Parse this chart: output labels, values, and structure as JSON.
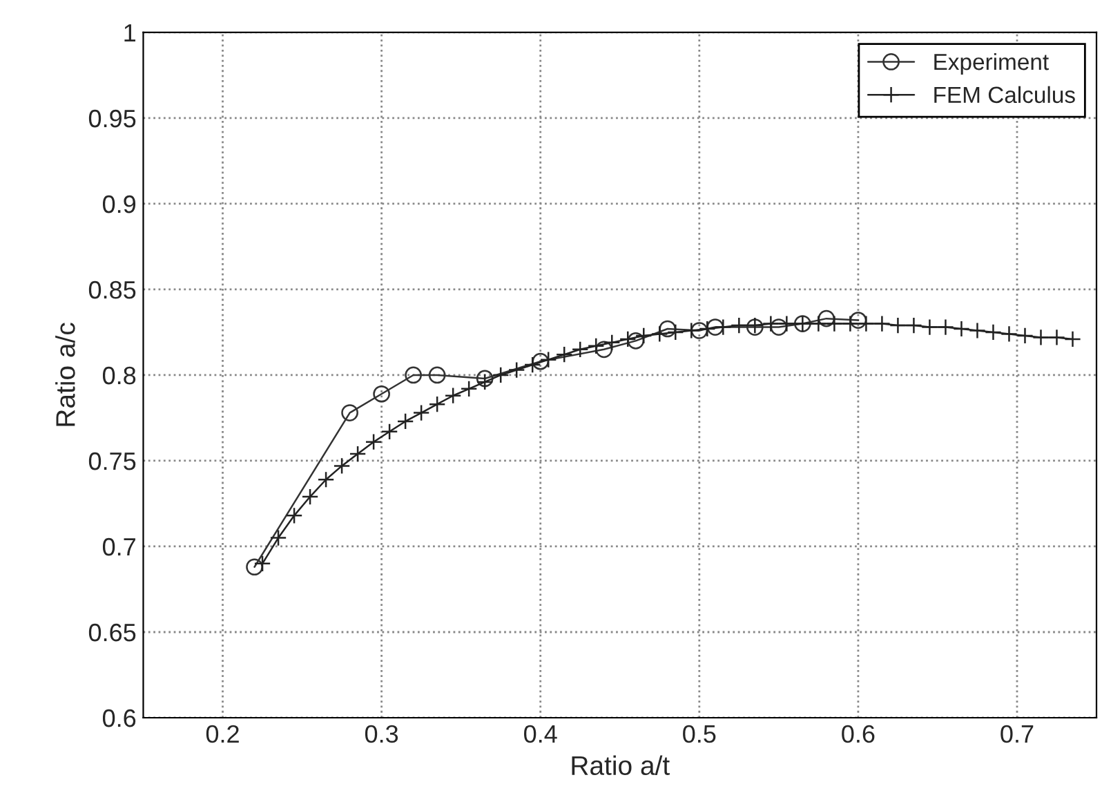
{
  "chart_data": {
    "type": "line",
    "xlabel": "Ratio a/t",
    "ylabel": "Ratio a/c",
    "xlim": [
      0.15,
      0.75
    ],
    "xticks": [
      0.2,
      0.3,
      0.4,
      0.5,
      0.6,
      0.7
    ],
    "ylim": [
      0.6,
      1
    ],
    "yticks": [
      0.6,
      0.65,
      0.7,
      0.75,
      0.8,
      0.85,
      0.9,
      0.95,
      1
    ],
    "grid": true,
    "legend": "top right",
    "line_style": "solid",
    "series": [
      {
        "name": "Experiment",
        "color": "#333333",
        "marker": "circle",
        "x": [
          0.22,
          0.28,
          0.3,
          0.32,
          0.335,
          0.365,
          0.4,
          0.44,
          0.46,
          0.48,
          0.5,
          0.51,
          0.535,
          0.55,
          0.565,
          0.58,
          0.6
        ],
        "values": [
          0.688,
          0.778,
          0.789,
          0.8,
          0.8,
          0.798,
          0.808,
          0.815,
          0.82,
          0.827,
          0.826,
          0.828,
          0.828,
          0.828,
          0.83,
          0.833,
          0.832
        ]
      },
      {
        "name": "FEM Calculus",
        "color": "#222222",
        "marker": "cross",
        "x": [
          0.225,
          0.235,
          0.245,
          0.255,
          0.265,
          0.275,
          0.285,
          0.295,
          0.305,
          0.315,
          0.325,
          0.335,
          0.345,
          0.355,
          0.365,
          0.375,
          0.385,
          0.395,
          0.405,
          0.415,
          0.425,
          0.435,
          0.445,
          0.455,
          0.465,
          0.475,
          0.485,
          0.495,
          0.505,
          0.515,
          0.525,
          0.535,
          0.545,
          0.555,
          0.565,
          0.575,
          0.585,
          0.595,
          0.605,
          0.615,
          0.625,
          0.635,
          0.645,
          0.655,
          0.665,
          0.675,
          0.685,
          0.695,
          0.705,
          0.715,
          0.725,
          0.735
        ],
        "values": [
          0.69,
          0.705,
          0.718,
          0.729,
          0.739,
          0.747,
          0.754,
          0.761,
          0.767,
          0.773,
          0.778,
          0.783,
          0.788,
          0.792,
          0.796,
          0.8,
          0.803,
          0.806,
          0.809,
          0.812,
          0.815,
          0.817,
          0.819,
          0.821,
          0.823,
          0.824,
          0.825,
          0.826,
          0.827,
          0.828,
          0.829,
          0.829,
          0.83,
          0.83,
          0.83,
          0.83,
          0.83,
          0.83,
          0.83,
          0.83,
          0.829,
          0.829,
          0.828,
          0.828,
          0.827,
          0.826,
          0.825,
          0.824,
          0.823,
          0.822,
          0.822,
          0.821
        ]
      }
    ]
  }
}
